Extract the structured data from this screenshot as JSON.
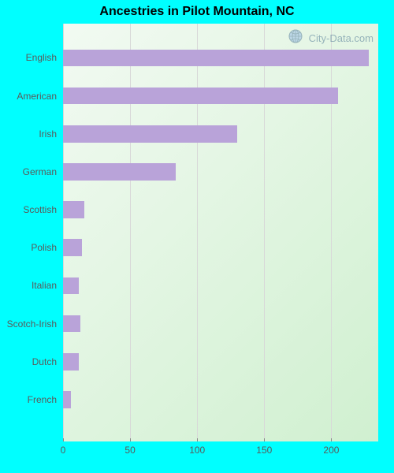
{
  "chart": {
    "type": "bar-horizontal",
    "title": "Ancestries in Pilot Mountain, NC",
    "title_fontsize": 16,
    "title_color": "#000000",
    "background_color": "#00ffff",
    "plot_bg_gradient_from": "#f2faf2",
    "plot_bg_gradient_to": "#d0f0d0",
    "bar_color": "#b9a3d9",
    "bar_height_ratio": 0.45,
    "gridline_color": "#d8d8d8",
    "axis_tick_color": "#888888",
    "label_color": "#5a5a5a",
    "label_fontsize": 12,
    "xlim": [
      0,
      235
    ],
    "xticks": [
      0,
      50,
      100,
      150,
      200
    ],
    "categories": [
      "English",
      "American",
      "Irish",
      "German",
      "Scottish",
      "Polish",
      "Italian",
      "Scotch-Irish",
      "Dutch",
      "French"
    ],
    "values": [
      228,
      205,
      130,
      84,
      16,
      14,
      12,
      13,
      12,
      6
    ],
    "watermark": {
      "text": "City-Data.com",
      "text_color": "#6b8fa3",
      "globe_fill": "#a7c7e7",
      "globe_stroke": "#6b8fa3"
    }
  }
}
